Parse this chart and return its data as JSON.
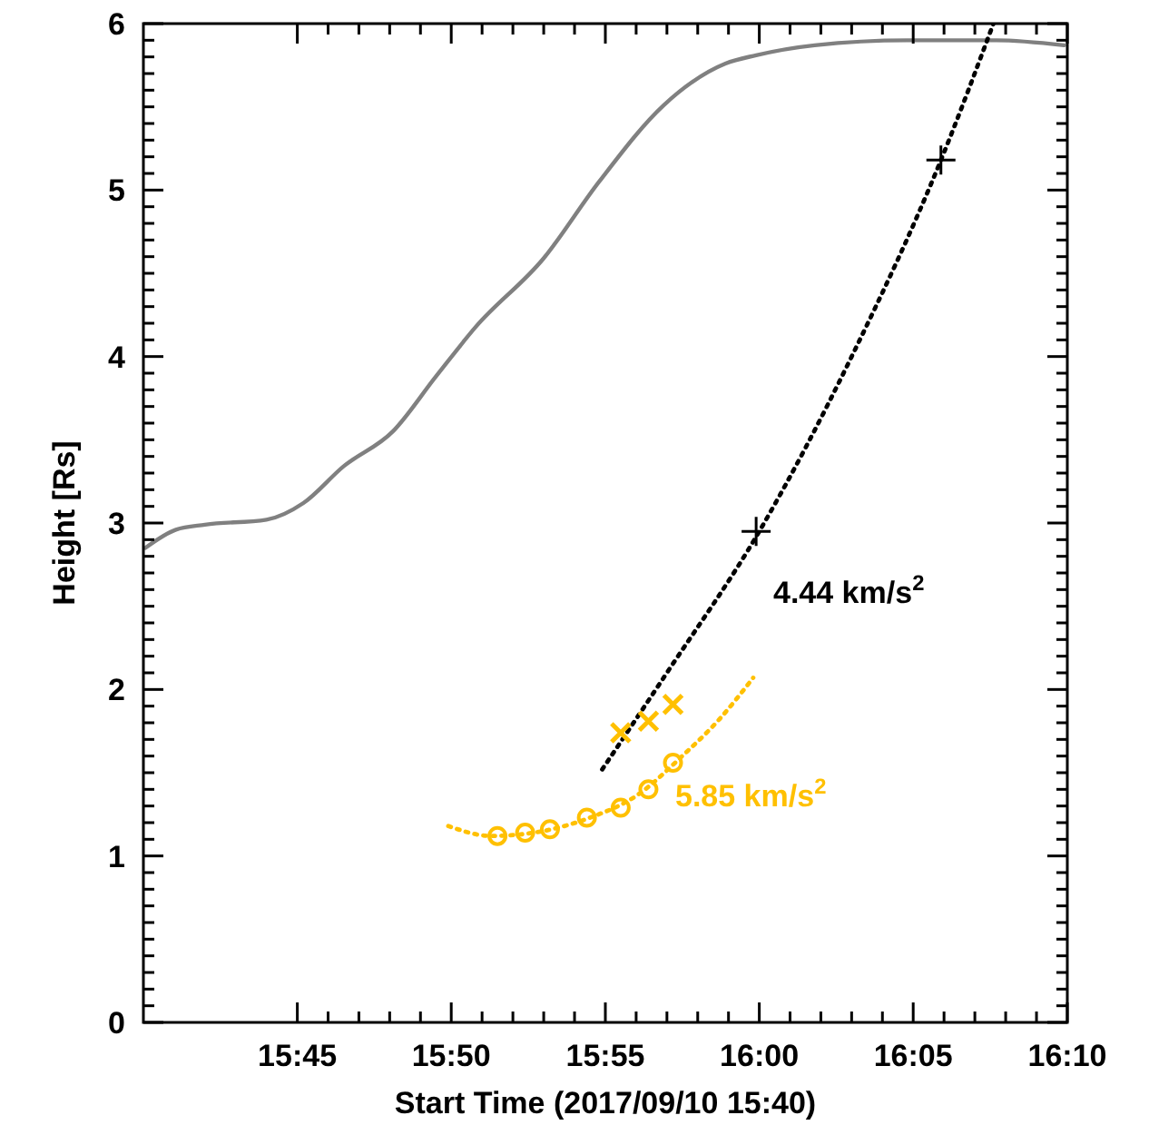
{
  "chart_data": {
    "type": "line",
    "xlabel": "Start Time (2017/09/10 15:40)",
    "ylabel": "Height [Rs]",
    "xlim": [
      15.6667,
      16.1667
    ],
    "ylim": [
      0,
      6
    ],
    "xticks": [
      {
        "value": 15.75,
        "label": "15:45"
      },
      {
        "value": 15.8333,
        "label": "15:50"
      },
      {
        "value": 15.9167,
        "label": "15:55"
      },
      {
        "value": 16,
        "label": "16:00"
      },
      {
        "value": 16.0833,
        "label": "16:05"
      },
      {
        "value": 16.1667,
        "label": "16:10"
      }
    ],
    "yticks": [
      0,
      1,
      2,
      3,
      4,
      5,
      6
    ],
    "series": [
      {
        "color": "#808080",
        "line_style": "solid",
        "marker": "none",
        "x": [
          15.6677,
          15.6843,
          15.7,
          15.7333,
          15.7533,
          15.775,
          15.8017,
          15.825,
          15.8467,
          15.8833,
          15.9133,
          15.9483,
          15.9817,
          15.9983,
          16.03,
          16.08,
          16.1283,
          16.165
        ],
        "values": [
          2.85,
          2.96,
          2.99,
          3.02,
          3.12,
          3.34,
          3.55,
          3.88,
          4.18,
          4.59,
          5.05,
          5.51,
          5.76,
          5.81,
          5.87,
          5.9,
          5.9,
          5.87
        ]
      },
      {
        "color": "#000000",
        "line_style": "dotted",
        "marker": "none",
        "x": [
          15.915,
          15.95,
          16.0,
          16.05,
          16.0983,
          16.1267
        ],
        "values": [
          1.52,
          2.1,
          2.95,
          4.0,
          5.18,
          6.0
        ]
      },
      {
        "type": "scatter",
        "color": "#000000",
        "marker": "cross",
        "x": [
          15.9983,
          16.0983
        ],
        "values": [
          2.95,
          5.18
        ]
      },
      {
        "color": "#ffc000",
        "line_style": "dotted",
        "marker": "none",
        "x": [
          15.8317,
          15.855,
          15.8833,
          15.9083,
          15.9333,
          15.9583,
          15.9783,
          15.9967
        ],
        "values": [
          1.18,
          1.12,
          1.15,
          1.23,
          1.36,
          1.6,
          1.82,
          2.07
        ]
      },
      {
        "type": "scatter",
        "color": "#ffc000",
        "marker": "circle",
        "x": [
          15.8583,
          15.8733,
          15.8867,
          15.9067,
          15.925,
          15.94,
          15.9533
        ],
        "values": [
          1.12,
          1.14,
          1.16,
          1.23,
          1.29,
          1.4,
          1.56
        ]
      },
      {
        "type": "scatter",
        "color": "#ffc000",
        "marker": "cross",
        "x": [
          15.925,
          15.94,
          15.9533
        ],
        "values": [
          1.74,
          1.81,
          1.91
        ]
      }
    ],
    "annotations": [
      "4.44 km/s$^{2}$",
      "5.85 km/s$^{2}$"
    ]
  }
}
